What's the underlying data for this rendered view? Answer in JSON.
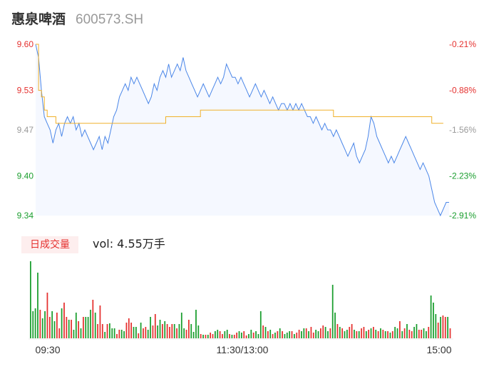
{
  "header": {
    "name": "惠泉啤酒",
    "code": "600573.SH"
  },
  "volume_panel": {
    "tab_label": "日成交量",
    "vol_label": "vol: 4.55万手"
  },
  "colors": {
    "price_line": "#4a86e8",
    "avg_line": "#f0b12b",
    "up": "#e5312f",
    "down": "#1a9e2e",
    "neutral": "#999999",
    "area": "#f5f8ff"
  },
  "chart_data": [
    {
      "type": "line",
      "title": "",
      "series": [
        {
          "name": "",
          "role": "price",
          "values": [
            9.6,
            9.58,
            9.53,
            9.49,
            9.48,
            9.47,
            9.45,
            9.47,
            9.48,
            9.46,
            9.48,
            9.49,
            9.48,
            9.49,
            9.47,
            9.48,
            9.46,
            9.47,
            9.46,
            9.45,
            9.44,
            9.45,
            9.46,
            9.44,
            9.46,
            9.45,
            9.47,
            9.49,
            9.5,
            9.52,
            9.53,
            9.54,
            9.53,
            9.55,
            9.54,
            9.55,
            9.54,
            9.53,
            9.52,
            9.51,
            9.52,
            9.54,
            9.53,
            9.55,
            9.56,
            9.55,
            9.57,
            9.55,
            9.56,
            9.57,
            9.56,
            9.58,
            9.56,
            9.55,
            9.54,
            9.53,
            9.52,
            9.53,
            9.54,
            9.53,
            9.52,
            9.53,
            9.54,
            9.55,
            9.54,
            9.55,
            9.57,
            9.56,
            9.55,
            9.55,
            9.54,
            9.55,
            9.54,
            9.53,
            9.52,
            9.53,
            9.54,
            9.53,
            9.52,
            9.53,
            9.52,
            9.51,
            9.52,
            9.51,
            9.5,
            9.51,
            9.51,
            9.5,
            9.51,
            9.5,
            9.51,
            9.5,
            9.51,
            9.5,
            9.49,
            9.49,
            9.48,
            9.49,
            9.48,
            9.47,
            9.48,
            9.47,
            9.47,
            9.46,
            9.47,
            9.46,
            9.45,
            9.44,
            9.43,
            9.44,
            9.45,
            9.43,
            9.42,
            9.43,
            9.44,
            9.46,
            9.49,
            9.48,
            9.46,
            9.45,
            9.44,
            9.43,
            9.42,
            9.43,
            9.42,
            9.43,
            9.44,
            9.45,
            9.46,
            9.45,
            9.44,
            9.43,
            9.42,
            9.41,
            9.42,
            9.41,
            9.4,
            9.38,
            9.36,
            9.35,
            9.34,
            9.35,
            9.36,
            9.36
          ]
        },
        {
          "name": "",
          "role": "average",
          "values": [
            9.6,
            9.53,
            9.52,
            9.5,
            9.49,
            9.49,
            9.49,
            9.48,
            9.48,
            9.48,
            9.48,
            9.48,
            9.48,
            9.48,
            9.48,
            9.48,
            9.48,
            9.48,
            9.48,
            9.48,
            9.48,
            9.48,
            9.48,
            9.48,
            9.48,
            9.48,
            9.48,
            9.48,
            9.48,
            9.48,
            9.48,
            9.48,
            9.48,
            9.48,
            9.48,
            9.48,
            9.48,
            9.48,
            9.48,
            9.48,
            9.48,
            9.48,
            9.48,
            9.48,
            9.48,
            9.49,
            9.49,
            9.49,
            9.49,
            9.49,
            9.49,
            9.49,
            9.49,
            9.49,
            9.49,
            9.49,
            9.49,
            9.5,
            9.5,
            9.5,
            9.5,
            9.5,
            9.5,
            9.5,
            9.5,
            9.5,
            9.5,
            9.5,
            9.5,
            9.5,
            9.5,
            9.5,
            9.5,
            9.5,
            9.5,
            9.5,
            9.5,
            9.5,
            9.5,
            9.5,
            9.5,
            9.5,
            9.5,
            9.5,
            9.5,
            9.5,
            9.5,
            9.5,
            9.5,
            9.5,
            9.5,
            9.5,
            9.5,
            9.5,
            9.5,
            9.5,
            9.5,
            9.5,
            9.5,
            9.5,
            9.5,
            9.5,
            9.5,
            9.49,
            9.49,
            9.49,
            9.49,
            9.49,
            9.49,
            9.49,
            9.49,
            9.49,
            9.49,
            9.49,
            9.49,
            9.49,
            9.49,
            9.49,
            9.49,
            9.49,
            9.49,
            9.49,
            9.49,
            9.49,
            9.49,
            9.49,
            9.49,
            9.49,
            9.49,
            9.49,
            9.49,
            9.49,
            9.49,
            9.49,
            9.49,
            9.49,
            9.49,
            9.48,
            9.48,
            9.48,
            9.48,
            9.48
          ]
        }
      ],
      "y_ticks": [
        {
          "price": 9.6,
          "pct": "-0.21%"
        },
        {
          "price": 9.53,
          "pct": "-0.88%"
        },
        {
          "price": 9.47,
          "pct": "-1.56%"
        },
        {
          "price": 9.4,
          "pct": "-2.23%"
        },
        {
          "price": 9.34,
          "pct": "-2.91%"
        }
      ],
      "ylim": [
        9.34,
        9.6
      ]
    },
    {
      "type": "bar",
      "title": "",
      "x_ticks": [
        "09:30",
        "11:30/13:00",
        "15:00"
      ],
      "values": [
        108,
        38,
        42,
        92,
        40,
        28,
        38,
        64,
        30,
        38,
        24,
        36,
        14,
        42,
        50,
        30,
        26,
        26,
        12,
        36,
        24,
        14,
        30,
        30,
        30,
        40,
        54,
        36,
        20,
        46,
        20,
        9,
        20,
        21,
        14,
        14,
        6,
        12,
        12,
        10,
        22,
        28,
        22,
        16,
        16,
        7,
        22,
        14,
        16,
        12,
        30,
        18,
        34,
        18,
        26,
        20,
        24,
        20,
        16,
        20,
        20,
        14,
        20,
        36,
        14,
        12,
        26,
        20,
        9,
        40,
        18,
        6,
        5,
        5,
        5,
        8,
        6,
        10,
        12,
        10,
        6,
        10,
        12,
        6,
        5,
        5,
        8,
        10,
        8,
        10,
        4,
        6,
        12,
        8,
        10,
        6,
        38,
        18,
        16,
        10,
        12,
        6,
        8,
        10,
        14,
        10,
        6,
        8,
        10,
        10,
        6,
        8,
        12,
        10,
        14,
        14,
        10,
        16,
        8,
        12,
        10,
        14,
        18,
        16,
        10,
        14,
        75,
        36,
        20,
        16,
        14,
        10,
        12,
        16,
        20,
        12,
        10,
        10,
        14,
        16,
        10,
        12,
        14,
        16,
        12,
        10,
        14,
        12,
        10,
        10,
        8,
        10,
        16,
        14,
        24,
        10,
        14,
        20,
        12,
        10,
        16,
        20,
        12,
        12,
        14,
        10,
        16,
        60,
        50,
        34,
        22,
        30,
        32,
        30,
        30,
        14
      ],
      "colors": [
        "d",
        "d",
        "d",
        "d",
        "u",
        "d",
        "d",
        "u",
        "u",
        "d",
        "d",
        "u",
        "u",
        "d",
        "u",
        "u",
        "d",
        "u",
        "d",
        "d",
        "u",
        "d",
        "u",
        "d",
        "d",
        "d",
        "u",
        "d",
        "u",
        "u",
        "u",
        "d",
        "u",
        "d",
        "d",
        "d",
        "u",
        "u",
        "d",
        "d",
        "u",
        "u",
        "u",
        "d",
        "d",
        "u",
        "d",
        "u",
        "u",
        "d",
        "d",
        "u",
        "u",
        "d",
        "d",
        "u",
        "d",
        "u",
        "u",
        "u",
        "d",
        "u",
        "d",
        "d",
        "d",
        "u",
        "u",
        "d",
        "d",
        "d",
        "d",
        "u",
        "d",
        "u",
        "d",
        "u",
        "u",
        "d",
        "d",
        "u",
        "u",
        "d",
        "d",
        "u",
        "d",
        "u",
        "u",
        "d",
        "d",
        "u",
        "u",
        "d",
        "d",
        "u",
        "d",
        "d",
        "d",
        "u",
        "d",
        "u",
        "d",
        "u",
        "d",
        "u",
        "d",
        "u",
        "d",
        "d",
        "d",
        "u",
        "d",
        "u",
        "u",
        "d",
        "d",
        "u",
        "d",
        "u",
        "u",
        "d",
        "d",
        "u",
        "u",
        "d",
        "d",
        "u",
        "d",
        "d",
        "u",
        "d",
        "u",
        "d",
        "d",
        "u",
        "u",
        "d",
        "u",
        "d",
        "u",
        "u",
        "d",
        "u",
        "d",
        "u",
        "d",
        "u",
        "d",
        "u",
        "d",
        "u",
        "d",
        "u",
        "d",
        "d",
        "u",
        "d",
        "u",
        "d",
        "u",
        "u",
        "d",
        "d",
        "u",
        "u",
        "d",
        "d",
        "u",
        "d",
        "d",
        "d",
        "u",
        "d",
        "u",
        "u",
        "d",
        "u"
      ]
    }
  ]
}
